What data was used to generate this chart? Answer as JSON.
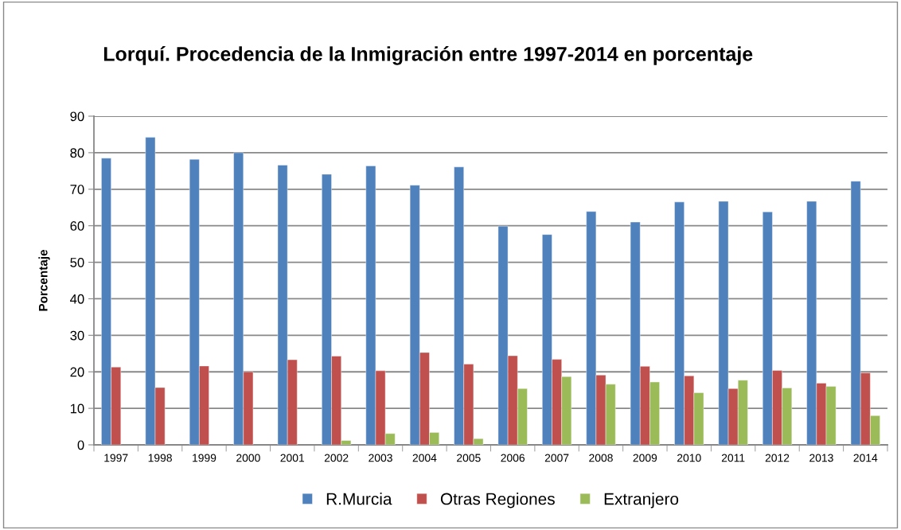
{
  "chart_data": {
    "type": "bar",
    "title": "Lorquí. Procedencia de la Inmigración entre 1997-2014 en porcentaje",
    "ylabel": "Porcentaje",
    "categories": [
      "1997",
      "1998",
      "1999",
      "2000",
      "2001",
      "2002",
      "2003",
      "2004",
      "2005",
      "2006",
      "2007",
      "2008",
      "2009",
      "2010",
      "2011",
      "2012",
      "2013",
      "2014"
    ],
    "series": [
      {
        "name": "R.Murcia",
        "color": "#4f81bd",
        "values": [
          78.5,
          84.2,
          78.2,
          80.0,
          76.6,
          74.1,
          76.4,
          71.1,
          76.1,
          59.9,
          57.6,
          63.9,
          61.0,
          66.5,
          66.7,
          63.8,
          66.7,
          72.2
        ]
      },
      {
        "name": "Otras Regiones",
        "color": "#c0504d",
        "values": [
          21.3,
          15.7,
          21.6,
          20.0,
          23.3,
          24.3,
          20.3,
          25.3,
          22.1,
          24.4,
          23.4,
          19.1,
          21.5,
          18.9,
          15.4,
          20.4,
          16.9,
          19.7
        ]
      },
      {
        "name": "Extranjero",
        "color": "#9bbb59",
        "values": [
          null,
          null,
          null,
          null,
          null,
          1.2,
          3.1,
          3.4,
          1.7,
          15.4,
          18.7,
          16.6,
          17.2,
          14.3,
          17.7,
          15.6,
          16.0,
          8.0
        ]
      }
    ],
    "ylim": [
      0,
      90
    ],
    "yticks": [
      0,
      10,
      20,
      30,
      40,
      50,
      60,
      70,
      80,
      90
    ],
    "grid": "y",
    "legend": "bottom"
  }
}
